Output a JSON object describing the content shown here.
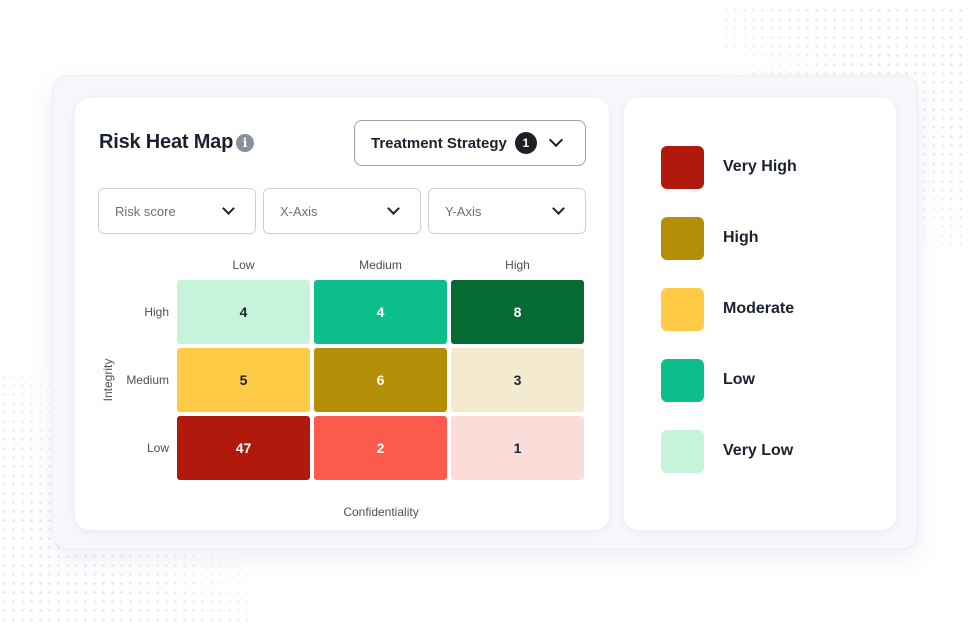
{
  "title": "Risk Heat Map",
  "info_icon": "info-icon",
  "treatment_button": {
    "label": "Treatment Strategy",
    "badge": "1",
    "icon": "chevron-down-icon"
  },
  "selects": [
    {
      "label": "Risk score"
    },
    {
      "label": "X-Axis"
    },
    {
      "label": "Y-Axis"
    }
  ],
  "heatmap": {
    "x_axis_title": "Confidentiality",
    "y_axis_title": "Integrity",
    "columns": [
      "Low",
      "Medium",
      "High"
    ],
    "rows": [
      "High",
      "Medium",
      "Low"
    ],
    "cells": [
      [
        {
          "value": "4",
          "bg": "#c6f3da",
          "fg": "#1f2430"
        },
        {
          "value": "4",
          "bg": "#0cbf8a",
          "fg": "#ffffff"
        },
        {
          "value": "8",
          "bg": "#066b33",
          "fg": "#ffffff"
        }
      ],
      [
        {
          "value": "5",
          "bg": "#ffcb47",
          "fg": "#1f2430"
        },
        {
          "value": "6",
          "bg": "#b58e07",
          "fg": "#ffffff"
        },
        {
          "value": "3",
          "bg": "#f3ead0",
          "fg": "#1f2430"
        }
      ],
      [
        {
          "value": "47",
          "bg": "#b1190d",
          "fg": "#ffffff"
        },
        {
          "value": "2",
          "bg": "#fb5a4d",
          "fg": "#ffffff"
        },
        {
          "value": "1",
          "bg": "#fadcd8",
          "fg": "#1f2430"
        }
      ]
    ]
  },
  "legend": [
    {
      "label": "Very High",
      "color": "#b1190d"
    },
    {
      "label": "High",
      "color": "#b58e07"
    },
    {
      "label": "Moderate",
      "color": "#ffcb47"
    },
    {
      "label": "Low",
      "color": "#0cbf8a"
    },
    {
      "label": "Very Low",
      "color": "#c6f3da"
    }
  ]
}
